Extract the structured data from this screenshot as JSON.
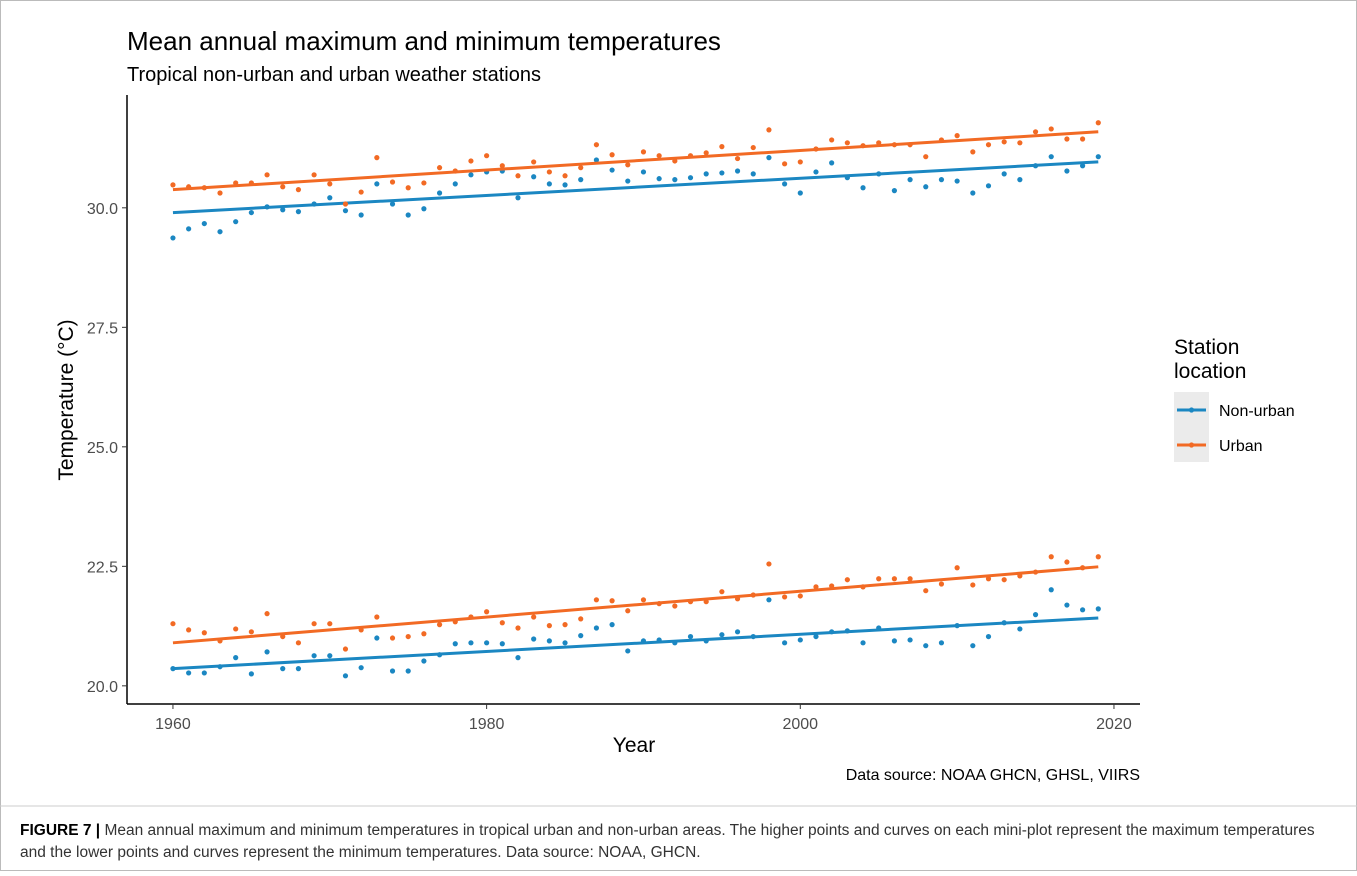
{
  "chart_data": {
    "type": "scatter",
    "title": "Mean annual maximum and minimum temperatures",
    "subtitle": "Tropical non-urban and urban weather stations",
    "x_label": "Year",
    "y_label": "Temperature (°C)",
    "legend_title": "Station location",
    "source": "Data source: NOAA GHCN, GHSL, VIIRS",
    "xlim": [
      1957.07,
      2021.66
    ],
    "ylim": [
      19.62,
      32.36
    ],
    "xticks": [
      1960,
      1980,
      2000,
      2020
    ],
    "yticks": [
      {
        "value": 20,
        "label": "20.0"
      },
      {
        "value": 22.5,
        "label": "22.5"
      },
      {
        "value": 25,
        "label": "25.0"
      },
      {
        "value": 27.5,
        "label": "27.5"
      },
      {
        "value": 30,
        "label": "30.0"
      }
    ],
    "legend_position": "right",
    "x": [
      1960,
      1961,
      1962,
      1963,
      1964,
      1965,
      1966,
      1967,
      1968,
      1969,
      1970,
      1971,
      1972,
      1973,
      1974,
      1975,
      1976,
      1977,
      1978,
      1979,
      1980,
      1981,
      1982,
      1983,
      1984,
      1985,
      1986,
      1987,
      1988,
      1989,
      1990,
      1991,
      1992,
      1993,
      1994,
      1995,
      1996,
      1997,
      1998,
      1999,
      2000,
      2001,
      2002,
      2003,
      2004,
      2005,
      2006,
      2007,
      2008,
      2009,
      2010,
      2011,
      2012,
      2013,
      2014,
      2015,
      2016,
      2017,
      2018,
      2019
    ],
    "series": [
      {
        "name": "Non-urban",
        "color": "#1b87c2",
        "max": [
          29.37,
          29.56,
          29.67,
          29.5,
          29.71,
          29.9,
          30.02,
          29.96,
          29.92,
          30.08,
          30.21,
          29.94,
          29.85,
          30.5,
          30.08,
          29.85,
          29.98,
          30.31,
          30.5,
          30.69,
          30.75,
          30.77,
          30.21,
          30.65,
          30.5,
          30.48,
          30.59,
          31.0,
          30.79,
          30.56,
          30.75,
          30.61,
          30.59,
          30.63,
          30.71,
          30.73,
          30.77,
          30.71,
          31.05,
          30.5,
          30.31,
          30.75,
          30.94,
          30.63,
          30.42,
          30.71,
          30.36,
          30.59,
          30.44,
          30.59,
          30.56,
          30.31,
          30.46,
          30.71,
          30.59,
          30.88,
          31.07,
          30.77,
          30.88,
          31.07
        ],
        "min": [
          20.36,
          20.27,
          20.27,
          20.4,
          20.59,
          20.25,
          20.71,
          20.36,
          20.36,
          20.63,
          20.63,
          20.21,
          20.38,
          21.0,
          20.31,
          20.31,
          20.52,
          20.65,
          20.88,
          20.9,
          20.9,
          20.88,
          20.59,
          20.98,
          20.94,
          20.9,
          21.05,
          21.21,
          21.28,
          20.73,
          20.94,
          20.96,
          20.9,
          21.03,
          20.94,
          21.07,
          21.13,
          21.03,
          21.8,
          20.9,
          20.96,
          21.03,
          21.13,
          21.15,
          20.9,
          21.21,
          20.94,
          20.96,
          20.84,
          20.9,
          21.26,
          20.84,
          21.03,
          21.32,
          21.19,
          21.49,
          22.01,
          21.69,
          21.59,
          21.61
        ],
        "trend_max": [
          29.9,
          30.96
        ],
        "trend_min": [
          20.36,
          21.42
        ]
      },
      {
        "name": "Urban",
        "color": "#f26a24",
        "max": [
          30.48,
          30.44,
          30.42,
          30.31,
          30.52,
          30.52,
          30.69,
          30.44,
          30.38,
          30.69,
          30.5,
          30.08,
          30.33,
          31.05,
          30.54,
          30.42,
          30.52,
          30.84,
          30.77,
          30.98,
          31.09,
          30.88,
          30.67,
          30.96,
          30.75,
          30.67,
          30.84,
          31.32,
          31.11,
          30.9,
          31.17,
          31.09,
          30.98,
          31.09,
          31.15,
          31.28,
          31.03,
          31.26,
          31.63,
          30.92,
          30.96,
          31.23,
          31.42,
          31.36,
          31.3,
          31.36,
          31.32,
          31.32,
          31.07,
          31.42,
          31.51,
          31.17,
          31.32,
          31.38,
          31.36,
          31.59,
          31.65,
          31.44,
          31.44,
          31.78
        ],
        "min": [
          21.3,
          21.17,
          21.11,
          20.94,
          21.19,
          21.13,
          21.51,
          21.03,
          20.9,
          21.3,
          21.3,
          20.77,
          21.17,
          21.44,
          21.0,
          21.03,
          21.09,
          21.28,
          21.34,
          21.44,
          21.55,
          21.32,
          21.21,
          21.44,
          21.26,
          21.28,
          21.4,
          21.8,
          21.78,
          21.57,
          21.8,
          21.72,
          21.67,
          21.76,
          21.76,
          21.97,
          21.82,
          21.9,
          22.55,
          21.86,
          21.88,
          22.07,
          22.09,
          22.22,
          22.07,
          22.24,
          22.24,
          22.24,
          21.99,
          22.13,
          22.47,
          22.11,
          22.24,
          22.22,
          22.3,
          22.38,
          22.7,
          22.59,
          22.47,
          22.7
        ],
        "trend_max": [
          30.38,
          31.59
        ],
        "trend_min": [
          20.9,
          22.49
        ]
      }
    ]
  },
  "caption": {
    "label": "FIGURE 7 |",
    "text": " Mean annual maximum and minimum temperatures in tropical urban and non-urban areas. The higher points and curves on each mini-plot represent the maximum temperatures and the lower points and curves represent the minimum temperatures. Data source: NOAA, GHCN."
  }
}
